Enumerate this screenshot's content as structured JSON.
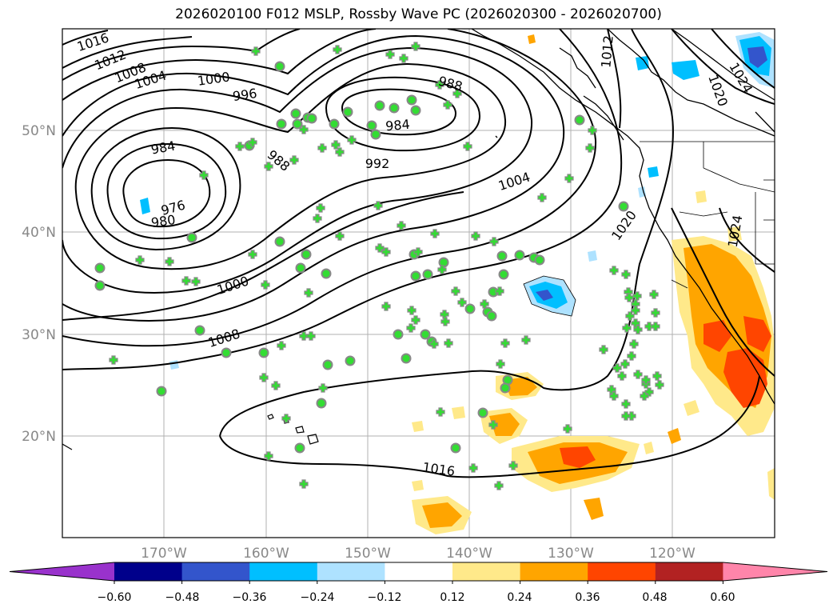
{
  "title": "2026020100 F012 MSLP, Rossby Wave PC (2026020300 - 2026020700)",
  "map": {
    "lon_labels": [
      "170°W",
      "160°W",
      "150°W",
      "140°W",
      "130°W",
      "120°W"
    ],
    "lat_labels": [
      "50°N",
      "40°N",
      "30°N",
      "20°N"
    ],
    "isobar_labels": [
      {
        "text": "1016"
      },
      {
        "text": "1012"
      },
      {
        "text": "1008"
      },
      {
        "text": "1004"
      },
      {
        "text": "1000"
      },
      {
        "text": "996"
      },
      {
        "text": "988"
      },
      {
        "text": "984"
      },
      {
        "text": "984"
      },
      {
        "text": "988"
      },
      {
        "text": "992"
      },
      {
        "text": "976"
      },
      {
        "text": "980"
      },
      {
        "text": "1004"
      },
      {
        "text": "1000"
      },
      {
        "text": "1008"
      },
      {
        "text": "1016"
      },
      {
        "text": "1020"
      },
      {
        "text": "1024"
      },
      {
        "text": "1012"
      },
      {
        "text": "1024"
      },
      {
        "text": "1020"
      }
    ],
    "colors": {
      "land_line": "#000000",
      "grid": "#b0b0b0",
      "marker_fill": "#33dd33",
      "marker_dot_edge": "#888888"
    }
  },
  "colorbar": {
    "ticks": [
      "−0.60",
      "−0.48",
      "−0.36",
      "−0.24",
      "−0.12",
      "0.12",
      "0.24",
      "0.36",
      "0.48",
      "0.60"
    ],
    "colors": [
      "#9932cc",
      "#00008b",
      "#3355cc",
      "#00bfff",
      "#aee2ff",
      "#ffffff",
      "#ffe98a",
      "#ffa500",
      "#ff4500",
      "#b22222",
      "#ff85aa"
    ]
  }
}
